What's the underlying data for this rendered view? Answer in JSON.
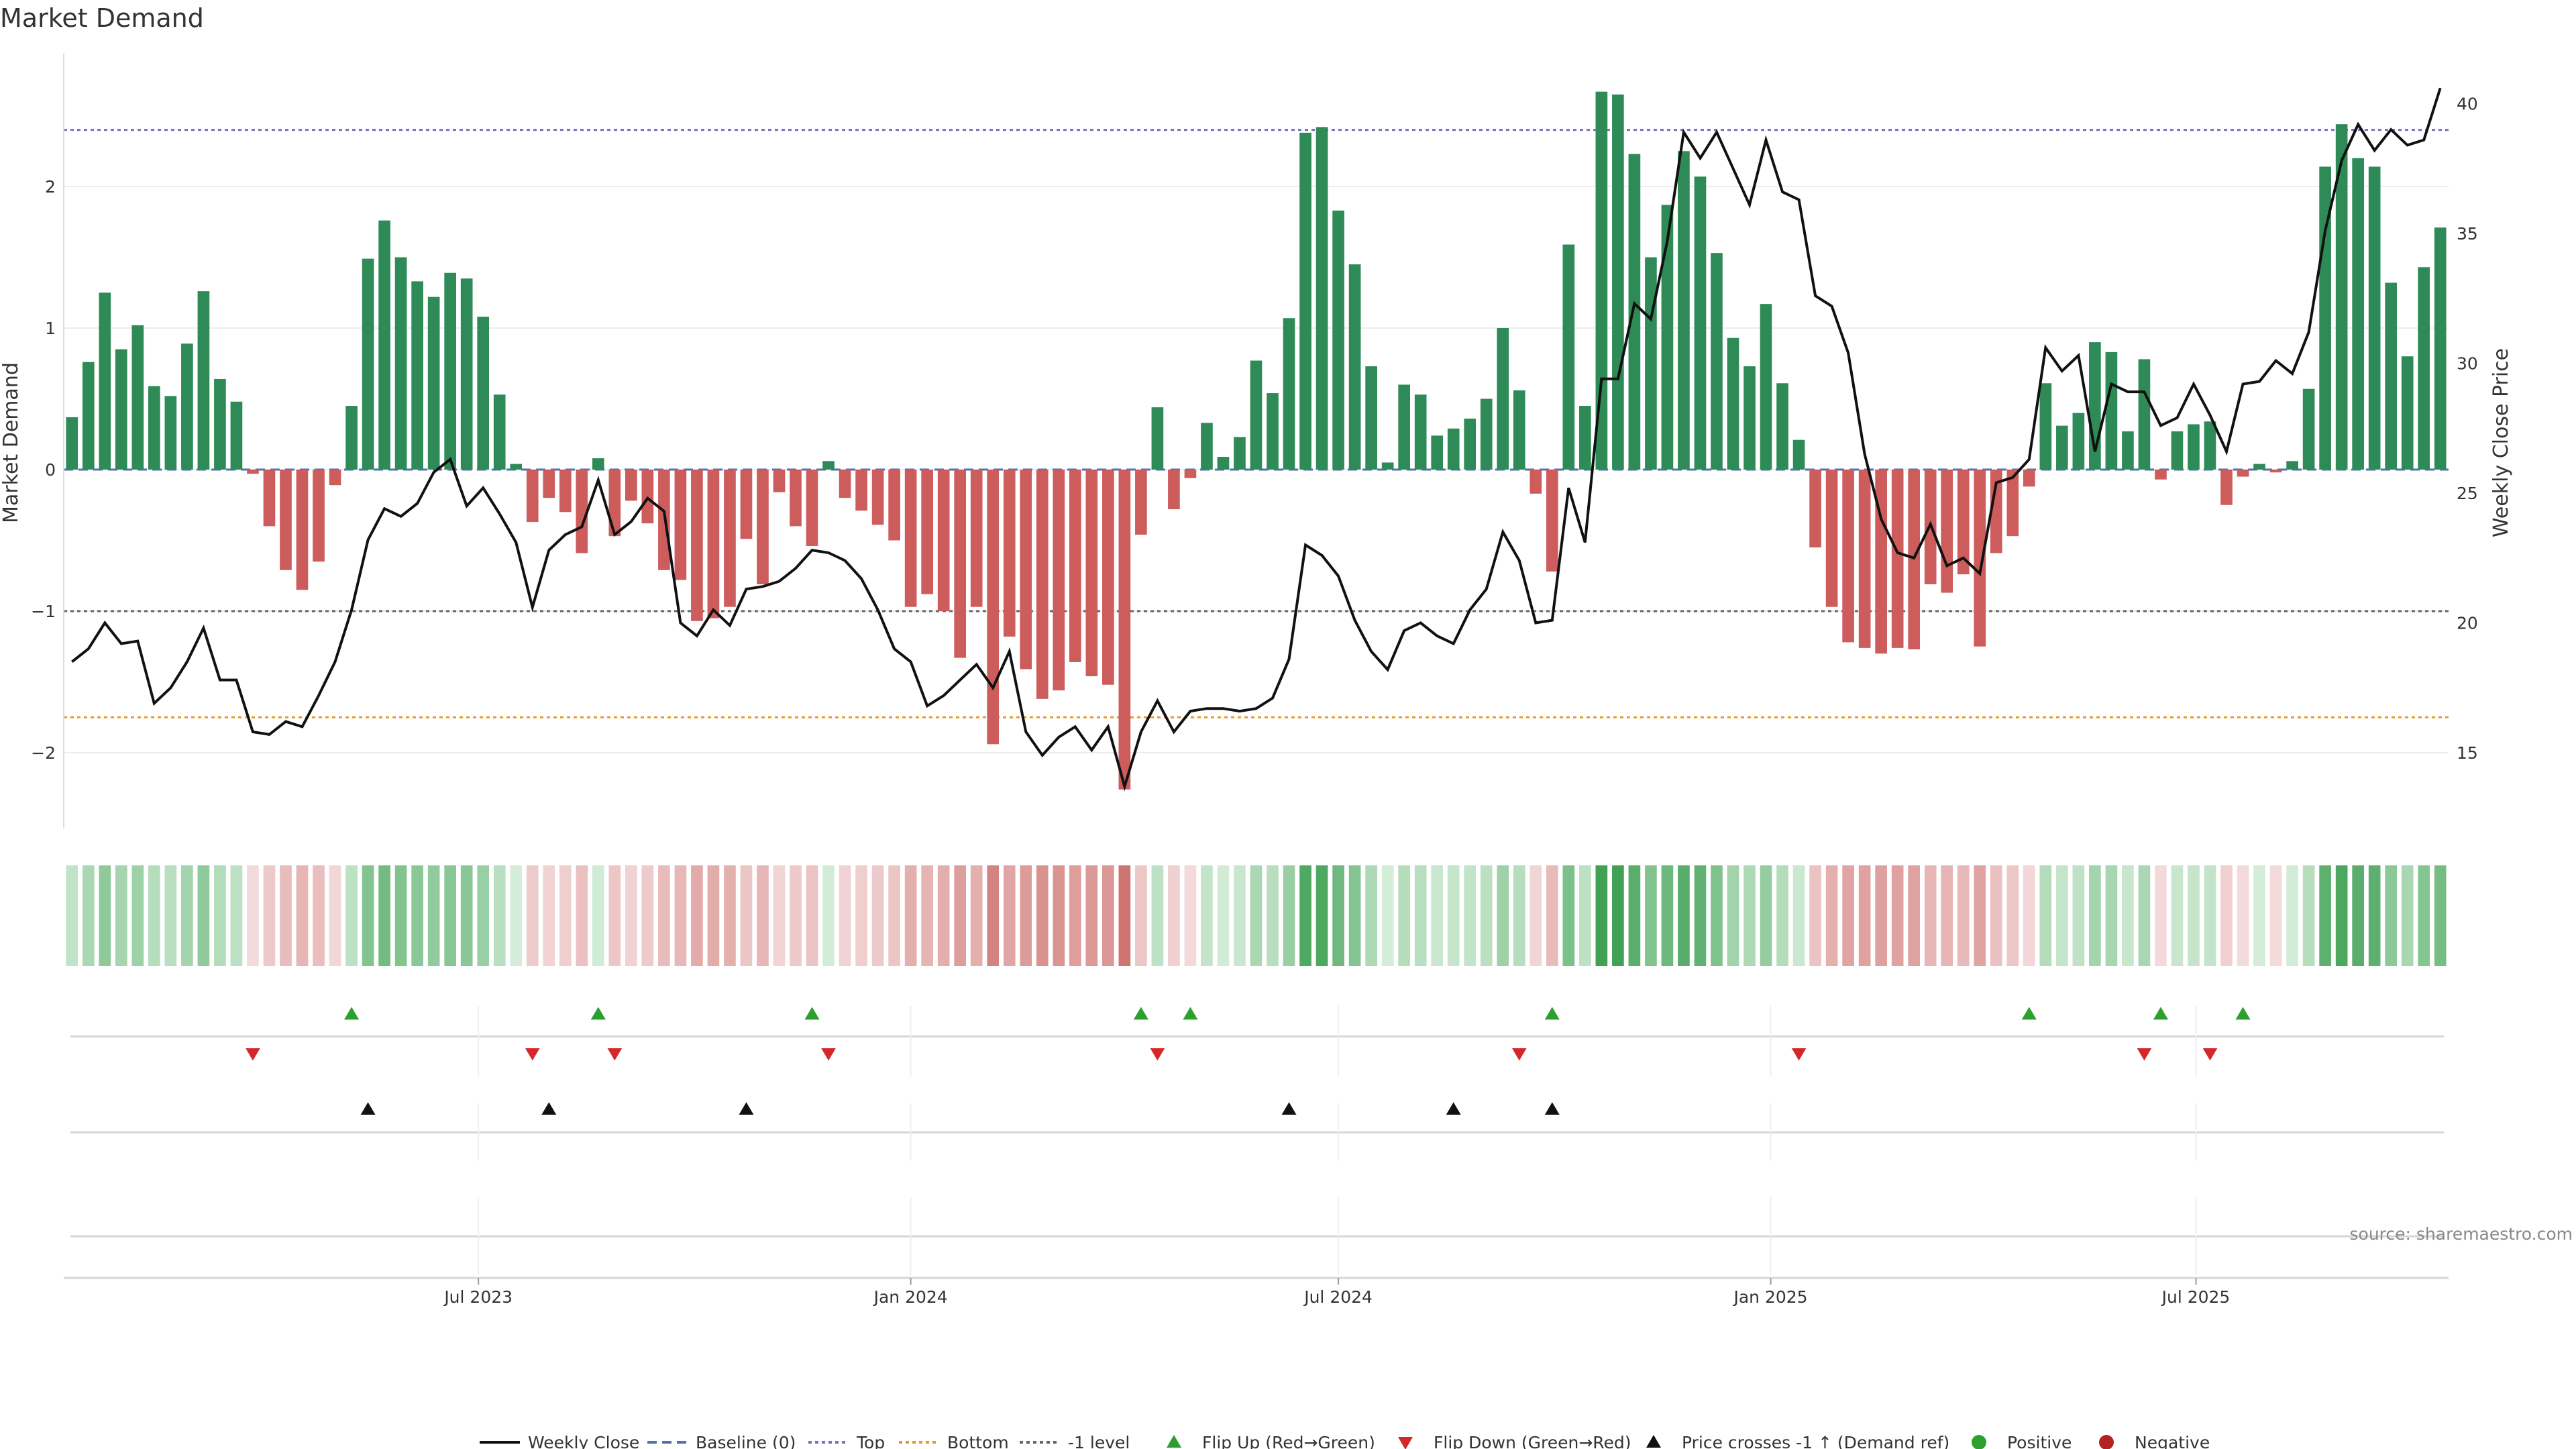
{
  "chart_data": {
    "type": "bar",
    "title": "Market Demand",
    "ylabel_left": "Market Demand",
    "ylabel_right": "Weekly Close Price",
    "source": "source: sharemaestro.com",
    "x_start": "2023-01-09",
    "x_step_days": 7,
    "ylim": [
      -2.5,
      2.75
    ],
    "y2lim": [
      12,
      41.5
    ],
    "yticks": [
      {
        "value": 2,
        "label": "2"
      },
      {
        "value": 1,
        "label": "1"
      },
      {
        "value": 0,
        "label": "0"
      },
      {
        "value": -1,
        "label": "−1"
      },
      {
        "value": -2,
        "label": "−2"
      }
    ],
    "y2ticks": [
      {
        "value": 40,
        "label": "40"
      },
      {
        "value": 35,
        "label": "35"
      },
      {
        "value": 30,
        "label": "30"
      },
      {
        "value": 25,
        "label": "25"
      },
      {
        "value": 20,
        "label": "20"
      },
      {
        "value": 15,
        "label": "15"
      }
    ],
    "xticks": [
      {
        "date": "2023-07-01",
        "label": "Jul 2023"
      },
      {
        "date": "2024-01-01",
        "label": "Jan 2024"
      },
      {
        "date": "2024-07-01",
        "label": "Jul 2024"
      },
      {
        "date": "2025-01-01",
        "label": "Jan 2025"
      },
      {
        "date": "2025-07-01",
        "label": "Jul 2025"
      }
    ],
    "levels": {
      "top": 2.4,
      "bottom": -1.75,
      "minus_one": -1,
      "baseline": 0
    },
    "demand": [
      0.37,
      0.76,
      1.25,
      0.85,
      1.02,
      0.59,
      0.52,
      0.89,
      1.26,
      0.64,
      0.48,
      -0.03,
      -0.4,
      -0.71,
      -0.85,
      -0.65,
      -0.11,
      0.45,
      1.49,
      1.76,
      1.5,
      1.33,
      1.22,
      1.39,
      1.35,
      1.08,
      0.53,
      0.04,
      -0.37,
      -0.2,
      -0.3,
      -0.59,
      0.08,
      -0.47,
      -0.22,
      -0.38,
      -0.71,
      -0.78,
      -1.07,
      -1.05,
      -0.97,
      -0.49,
      -0.81,
      -0.16,
      -0.4,
      -0.54,
      0.06,
      -0.2,
      -0.29,
      -0.39,
      -0.5,
      -0.97,
      -0.88,
      -1.0,
      -1.33,
      -0.97,
      -1.94,
      -1.18,
      -1.41,
      -1.62,
      -1.56,
      -1.36,
      -1.46,
      -1.52,
      -2.26,
      -0.46,
      0.44,
      -0.28,
      -0.06,
      0.33,
      0.09,
      0.23,
      0.77,
      0.54,
      1.07,
      2.38,
      2.42,
      1.83,
      1.45,
      0.73,
      0.05,
      0.6,
      0.53,
      0.24,
      0.29,
      0.36,
      0.5,
      1.0,
      0.56,
      -0.17,
      -0.72,
      1.59,
      0.45,
      2.67,
      2.65,
      2.23,
      1.5,
      1.87,
      2.25,
      2.07,
      1.53,
      0.93,
      0.73,
      1.17,
      0.61,
      0.21,
      -0.55,
      -0.97,
      -1.22,
      -1.26,
      -1.3,
      -1.26,
      -1.27,
      -0.81,
      -0.87,
      -0.74,
      -1.25,
      -0.59,
      -0.47,
      -0.12,
      0.61,
      0.31,
      0.4,
      0.9,
      0.83,
      0.27,
      0.78,
      -0.07,
      0.27,
      0.32,
      0.34,
      -0.25,
      -0.05,
      0.04,
      -0.02,
      0.06,
      0.57,
      2.14,
      2.44,
      2.2,
      2.14,
      1.32,
      0.8,
      1.43,
      1.71
    ],
    "price": [
      18.5,
      19.0,
      20.0,
      19.2,
      19.3,
      16.9,
      17.5,
      18.5,
      19.8,
      17.8,
      17.8,
      15.8,
      15.7,
      16.2,
      16.0,
      17.2,
      18.5,
      20.5,
      23.2,
      24.4,
      24.1,
      24.6,
      25.8,
      26.3,
      24.5,
      25.2,
      24.2,
      23.1,
      20.6,
      22.8,
      23.4,
      23.7,
      25.5,
      23.4,
      23.9,
      24.8,
      24.3,
      20.0,
      19.5,
      20.5,
      19.9,
      21.3,
      21.4,
      21.6,
      22.1,
      22.8,
      22.7,
      22.4,
      21.7,
      20.5,
      19.0,
      18.5,
      16.8,
      17.2,
      17.8,
      18.4,
      17.5,
      18.9,
      15.8,
      14.9,
      15.6,
      16.0,
      15.1,
      16.0,
      13.7,
      15.8,
      17.0,
      15.8,
      16.6,
      16.7,
      16.7,
      16.6,
      16.7,
      17.1,
      18.6,
      23.0,
      22.6,
      21.8,
      20.1,
      18.9,
      18.2,
      19.7,
      20.0,
      19.5,
      19.2,
      20.5,
      21.3,
      23.5,
      22.4,
      20.0,
      20.1,
      25.2,
      23.1,
      29.4,
      29.4,
      32.3,
      31.7,
      34.7,
      38.9,
      37.9,
      38.9,
      37.5,
      36.1,
      38.6,
      36.6,
      36.3,
      32.6,
      32.2,
      30.4,
      26.5,
      24.0,
      22.7,
      22.5,
      23.8,
      22.2,
      22.5,
      21.9,
      25.4,
      25.6,
      26.3,
      30.6,
      29.7,
      30.3,
      26.6,
      29.2,
      28.9,
      28.9,
      27.6,
      27.9,
      29.2,
      28.0,
      26.6,
      29.2,
      29.3,
      30.1,
      29.6,
      31.2,
      35.1,
      37.8,
      39.2,
      38.2,
      39.0,
      38.4,
      38.6,
      40.6
    ],
    "flip_up_weeks": [
      17,
      32,
      45,
      65,
      68,
      90,
      119,
      127,
      132
    ],
    "flip_down_weeks": [
      11,
      28,
      33,
      46,
      66,
      88,
      105,
      126,
      130
    ],
    "price_cross_weeks": [
      18,
      29,
      41,
      74,
      84,
      90
    ],
    "legend": [
      {
        "label": "Weekly Close",
        "kind": "solid-line",
        "color": "#111111"
      },
      {
        "label": "Baseline (0)",
        "kind": "dashed-line",
        "color": "#4c72b0"
      },
      {
        "label": "Top",
        "kind": "dotted-line",
        "color": "#7a6fc0"
      },
      {
        "label": "Bottom",
        "kind": "dotted-line",
        "color": "#e59a2b"
      },
      {
        "label": "-1 level",
        "kind": "dotted-line",
        "color": "#666666"
      },
      {
        "label": "Flip Up (Red→Green)",
        "kind": "triangle-up",
        "color": "#2ca02c"
      },
      {
        "label": "Flip Down (Green→Red)",
        "kind": "triangle-down",
        "color": "#d62728"
      },
      {
        "label": "Price crosses -1 ↑ (Demand ref)",
        "kind": "triangle-up",
        "color": "#111111"
      },
      {
        "label": "Positive",
        "kind": "dot",
        "color": "#2ca02c"
      },
      {
        "label": "Negative",
        "kind": "dot",
        "color": "#b22222"
      }
    ],
    "colors": {
      "positive": "#2e8b57",
      "negative": "#cd5c5c",
      "price": "#111111"
    }
  }
}
